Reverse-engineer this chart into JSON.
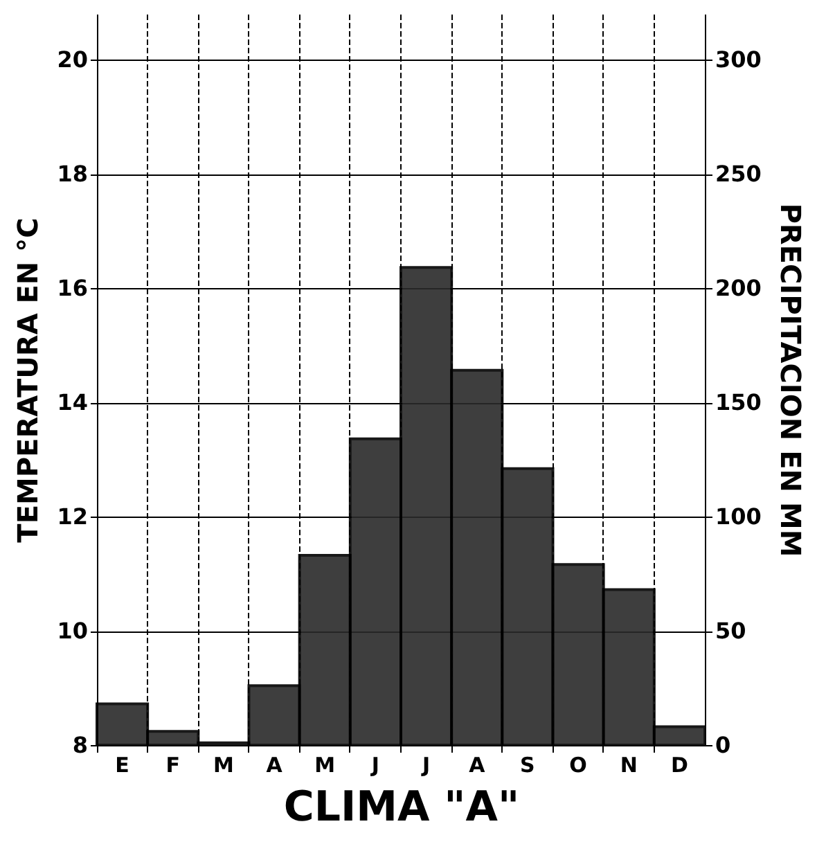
{
  "chart_data": {
    "type": "bar",
    "xlabel": "CLIMA \"A\"",
    "ylabel": "TEMPERATURA EN °C",
    "y2label": "PRECIPITACION EN MM",
    "categories": [
      "E",
      "F",
      "M",
      "A",
      "M",
      "J",
      "J",
      "A",
      "S",
      "O",
      "N",
      "D"
    ],
    "series": [
      {
        "color": "#2a2a2a",
        "axis": "y2",
        "values": [
          18,
          6,
          1,
          26,
          83,
          134,
          209,
          164,
          121,
          79,
          68,
          8
        ]
      }
    ],
    "ylim": [
      8,
      20.8
    ],
    "yticks": [
      8,
      10,
      12,
      14,
      16,
      18,
      20
    ],
    "y2lim": [
      0,
      320
    ],
    "y2ticks": [
      0,
      50,
      100,
      150,
      200,
      250,
      300
    ],
    "grid": true
  }
}
